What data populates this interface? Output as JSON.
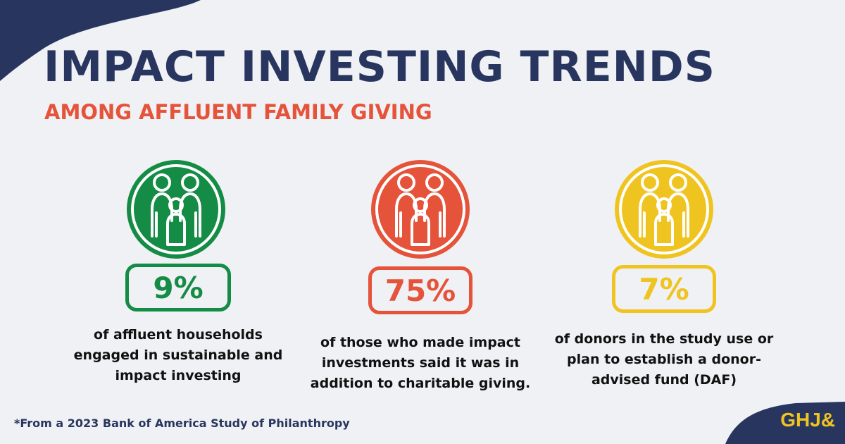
{
  "header": {
    "title": "IMPACT INVESTING TRENDS",
    "subtitle": "AMONG AFFLUENT FAMILY GIVING"
  },
  "stats": [
    {
      "value": "9%",
      "description": "of affluent households engaged in sustainable and impact investing",
      "color": "#148c45",
      "icon": "family-icon"
    },
    {
      "value": "75%",
      "description": "of those who made impact investments said it was in addition to charitable giving.",
      "color": "#e5533a",
      "icon": "family-icon"
    },
    {
      "value": "7%",
      "description": "of donors in the study use or plan to establish a donor-advised fund (DAF)",
      "color": "#f0c420",
      "icon": "family-icon"
    }
  ],
  "footnote": "*From a 2023 Bank of America Study of Philanthropy",
  "logo": {
    "text": "GHJ&",
    "color": "#f0c420"
  },
  "colors": {
    "navy": "#28365f",
    "background": "#f0f1f5"
  }
}
